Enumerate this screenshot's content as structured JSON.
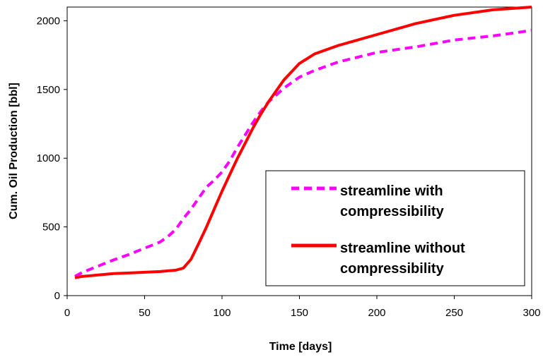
{
  "chart_data": {
    "type": "line",
    "xlabel": "Time [days]",
    "ylabel": "Cum. Oil Production [bbl]",
    "xlim": [
      0,
      300
    ],
    "ylim": [
      0,
      2100
    ],
    "xticks": [
      0,
      50,
      100,
      150,
      200,
      250,
      300
    ],
    "yticks": [
      0,
      500,
      1000,
      1500,
      2000
    ],
    "grid": false,
    "legend_position": "lower-right",
    "series": [
      {
        "name": "streamline with compressibility",
        "color": "#ff00ff",
        "style": "dashed",
        "x": [
          5,
          10,
          20,
          30,
          40,
          50,
          60,
          65,
          70,
          75,
          80,
          85,
          90,
          95,
          100,
          105,
          110,
          115,
          120,
          125,
          130,
          140,
          150,
          160,
          175,
          200,
          225,
          250,
          275,
          300
        ],
        "y": [
          140,
          170,
          215,
          260,
          300,
          345,
          390,
          430,
          480,
          560,
          630,
          710,
          790,
          840,
          900,
          980,
          1080,
          1170,
          1260,
          1340,
          1410,
          1510,
          1590,
          1640,
          1700,
          1770,
          1810,
          1860,
          1890,
          1930
        ]
      },
      {
        "name": "streamline without compressibility",
        "color": "#ff0000",
        "style": "solid",
        "x": [
          5,
          10,
          20,
          30,
          40,
          50,
          60,
          65,
          70,
          75,
          80,
          85,
          90,
          95,
          100,
          105,
          110,
          115,
          120,
          125,
          130,
          135,
          140,
          145,
          150,
          160,
          175,
          200,
          225,
          250,
          275,
          300
        ],
        "y": [
          130,
          140,
          150,
          160,
          165,
          170,
          175,
          180,
          185,
          200,
          265,
          380,
          500,
          630,
          760,
          880,
          1000,
          1110,
          1220,
          1320,
          1410,
          1490,
          1570,
          1630,
          1690,
          1760,
          1820,
          1900,
          1980,
          2040,
          2080,
          2100
        ]
      }
    ]
  }
}
